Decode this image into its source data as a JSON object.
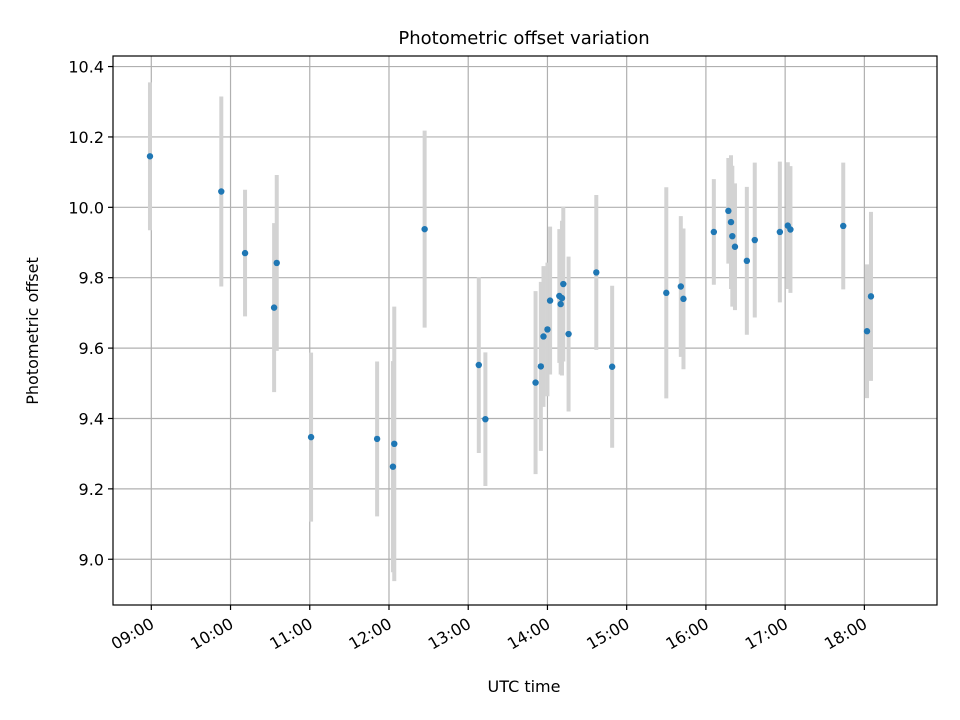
{
  "chart_data": {
    "type": "scatter",
    "title": "Photometric offset variation",
    "xlabel": "UTC time",
    "ylabel": "Photometric offset",
    "xlim": [
      "08:31",
      "18:55"
    ],
    "ylim": [
      8.87,
      10.43
    ],
    "x_ticks": [
      "09:00",
      "10:00",
      "11:00",
      "12:00",
      "13:00",
      "14:00",
      "15:00",
      "16:00",
      "17:00",
      "18:00"
    ],
    "y_ticks": [
      "9.0",
      "9.2",
      "9.4",
      "9.6",
      "9.8",
      "10.0",
      "10.2",
      "10.4"
    ],
    "grid": true,
    "colors": {
      "point": "#1f77b4",
      "errorbar": "#d3d3d3",
      "grid": "#b0b0b0"
    },
    "points": [
      {
        "x": "08:59",
        "y": 10.145,
        "err": 0.21
      },
      {
        "x": "09:53",
        "y": 10.045,
        "err": 0.27
      },
      {
        "x": "10:11",
        "y": 9.87,
        "err": 0.18
      },
      {
        "x": "10:33",
        "y": 9.715,
        "err": 0.24
      },
      {
        "x": "10:35",
        "y": 9.842,
        "err": 0.25
      },
      {
        "x": "11:01",
        "y": 9.347,
        "err": 0.24
      },
      {
        "x": "11:51",
        "y": 9.342,
        "err": 0.22
      },
      {
        "x": "12:03",
        "y": 9.263,
        "err": 0.3
      },
      {
        "x": "12:04",
        "y": 9.328,
        "err": 0.39
      },
      {
        "x": "12:27",
        "y": 9.938,
        "err": 0.28
      },
      {
        "x": "13:08",
        "y": 9.552,
        "err": 0.25
      },
      {
        "x": "13:13",
        "y": 9.398,
        "err": 0.19
      },
      {
        "x": "13:51",
        "y": 9.502,
        "err": 0.26
      },
      {
        "x": "13:55",
        "y": 9.548,
        "err": 0.24
      },
      {
        "x": "13:57",
        "y": 9.633,
        "err": 0.2
      },
      {
        "x": "14:00",
        "y": 9.653,
        "err": 0.19
      },
      {
        "x": "14:02",
        "y": 9.735,
        "err": 0.21
      },
      {
        "x": "14:09",
        "y": 9.748,
        "err": 0.19
      },
      {
        "x": "14:10",
        "y": 9.725,
        "err": 0.2
      },
      {
        "x": "14:11",
        "y": 9.742,
        "err": 0.22
      },
      {
        "x": "14:12",
        "y": 9.782,
        "err": 0.22
      },
      {
        "x": "14:16",
        "y": 9.64,
        "err": 0.22
      },
      {
        "x": "14:37",
        "y": 9.815,
        "err": 0.22
      },
      {
        "x": "14:49",
        "y": 9.547,
        "err": 0.23
      },
      {
        "x": "15:30",
        "y": 9.757,
        "err": 0.3
      },
      {
        "x": "15:41",
        "y": 9.775,
        "err": 0.2
      },
      {
        "x": "15:43",
        "y": 9.74,
        "err": 0.2
      },
      {
        "x": "16:06",
        "y": 9.93,
        "err": 0.15
      },
      {
        "x": "16:17",
        "y": 9.99,
        "err": 0.15
      },
      {
        "x": "16:19",
        "y": 9.958,
        "err": 0.19
      },
      {
        "x": "16:20",
        "y": 9.918,
        "err": 0.2
      },
      {
        "x": "16:22",
        "y": 9.888,
        "err": 0.18
      },
      {
        "x": "16:31",
        "y": 9.848,
        "err": 0.21
      },
      {
        "x": "16:37",
        "y": 9.907,
        "err": 0.22
      },
      {
        "x": "16:56",
        "y": 9.93,
        "err": 0.2
      },
      {
        "x": "17:02",
        "y": 9.948,
        "err": 0.18
      },
      {
        "x": "17:04",
        "y": 9.937,
        "err": 0.18
      },
      {
        "x": "17:44",
        "y": 9.947,
        "err": 0.18
      },
      {
        "x": "18:02",
        "y": 9.648,
        "err": 0.19
      },
      {
        "x": "18:05",
        "y": 9.747,
        "err": 0.24
      }
    ]
  }
}
